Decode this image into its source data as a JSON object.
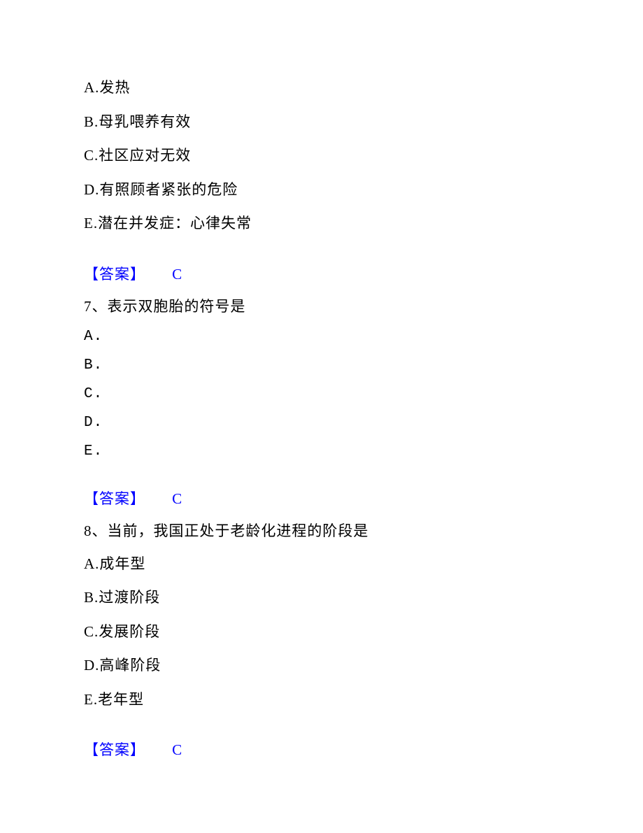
{
  "colors": {
    "text": "#000000",
    "answer": "#0000ff",
    "background": "#ffffff"
  },
  "typography": {
    "body_font": "SimSun",
    "font_size": 21,
    "line_spacing": 17
  },
  "q6": {
    "options": {
      "A": "A.发热",
      "B": "B.母乳喂养有效",
      "C": "C.社区应对无效",
      "D": "D.有照顾者紧张的危险",
      "E": "E.潜在并发症：心律失常"
    },
    "answer_label": "【答案】",
    "answer_value": "C"
  },
  "q7": {
    "stem": "7、表示双胞胎的符号是",
    "options": {
      "A": "A.",
      "B": "B.",
      "C": "C.",
      "D": "D.",
      "E": "E."
    },
    "answer_label": "【答案】",
    "answer_value": "C"
  },
  "q8": {
    "stem": "8、当前，我国正处于老龄化进程的阶段是",
    "options": {
      "A": "A.成年型",
      "B": "B.过渡阶段",
      "C": "C.发展阶段",
      "D": "D.高峰阶段",
      "E": "E.老年型"
    },
    "answer_label": "【答案】",
    "answer_value": "C"
  }
}
